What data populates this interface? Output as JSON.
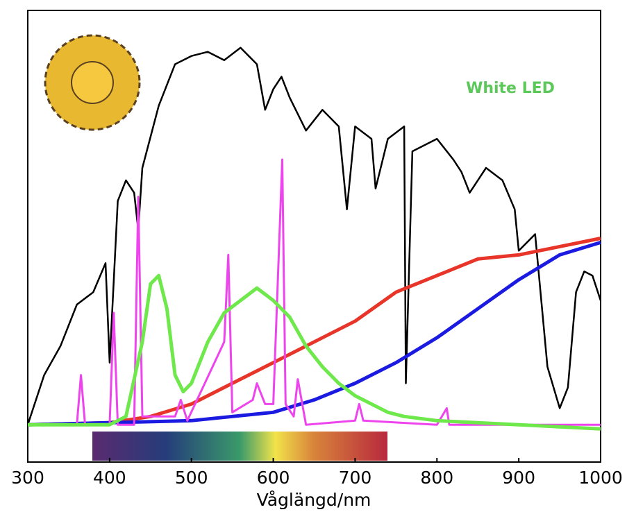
{
  "chart_data": {
    "type": "line",
    "xlabel": "Våglängd/nm",
    "annotation": "White LED",
    "annotation_color": "#5cc85a",
    "xlim": [
      300,
      1000
    ],
    "ylim": [
      -0.09,
      1
    ],
    "xticks": [
      300,
      400,
      500,
      600,
      700,
      800,
      900,
      1000
    ],
    "series": [
      {
        "color": "#000000",
        "width": 2.5,
        "x": [
          300,
          320,
          340,
          360,
          380,
          395,
          400,
          410,
          420,
          430,
          435,
          440,
          460,
          480,
          500,
          520,
          540,
          560,
          580,
          590,
          600,
          610,
          620,
          640,
          660,
          680,
          690,
          700,
          720,
          725,
          740,
          760,
          762,
          770,
          800,
          820,
          830,
          840,
          860,
          880,
          895,
          900,
          920,
          935,
          950,
          960,
          970,
          980,
          990,
          1000
        ],
        "values": [
          0,
          0.12,
          0.19,
          0.29,
          0.32,
          0.39,
          0.15,
          0.54,
          0.59,
          0.56,
          0.47,
          0.62,
          0.77,
          0.87,
          0.89,
          0.9,
          0.88,
          0.91,
          0.87,
          0.76,
          0.81,
          0.84,
          0.79,
          0.71,
          0.76,
          0.72,
          0.52,
          0.72,
          0.69,
          0.57,
          0.69,
          0.72,
          0.1,
          0.66,
          0.69,
          0.64,
          0.61,
          0.56,
          0.62,
          0.59,
          0.52,
          0.42,
          0.46,
          0.14,
          0.04,
          0.09,
          0.32,
          0.37,
          0.36,
          0.3
        ]
      },
      {
        "color": "#e8352a",
        "width": 5,
        "x": [
          300,
          400,
          450,
          500,
          550,
          600,
          650,
          700,
          750,
          800,
          850,
          900,
          950,
          1000
        ],
        "values": [
          0,
          0.005,
          0.02,
          0.05,
          0.1,
          0.15,
          0.2,
          0.25,
          0.32,
          0.36,
          0.4,
          0.41,
          0.43,
          0.45
        ]
      },
      {
        "color": "#1a1ae0",
        "width": 5,
        "x": [
          300,
          500,
          600,
          650,
          700,
          750,
          800,
          850,
          900,
          950,
          1000
        ],
        "values": [
          0,
          0.01,
          0.03,
          0.06,
          0.1,
          0.15,
          0.21,
          0.28,
          0.35,
          0.41,
          0.44
        ]
      },
      {
        "color": "#ee44ee",
        "width": 3,
        "x": [
          300,
          360,
          365,
          370,
          400,
          405,
          410,
          430,
          435,
          440,
          480,
          487,
          495,
          540,
          545,
          550,
          575,
          580,
          590,
          600,
          611,
          615,
          625,
          630,
          640,
          700,
          705,
          710,
          800,
          812,
          815,
          1000
        ],
        "values": [
          0,
          0,
          0.12,
          0,
          0,
          0.27,
          0,
          0,
          0.55,
          0.02,
          0.02,
          0.06,
          0.01,
          0.2,
          0.41,
          0.03,
          0.06,
          0.1,
          0.05,
          0.05,
          0.64,
          0.05,
          0.02,
          0.11,
          0,
          0.01,
          0.05,
          0.01,
          0,
          0.04,
          0,
          0
        ]
      },
      {
        "color": "#6ee84a",
        "width": 5,
        "x": [
          300,
          400,
          420,
          440,
          450,
          460,
          470,
          480,
          490,
          500,
          520,
          540,
          560,
          580,
          600,
          620,
          640,
          660,
          680,
          700,
          720,
          740,
          760,
          800,
          900,
          1000
        ],
        "values": [
          0,
          0,
          0.02,
          0.2,
          0.34,
          0.36,
          0.28,
          0.12,
          0.08,
          0.1,
          0.2,
          0.27,
          0.3,
          0.33,
          0.3,
          0.26,
          0.19,
          0.14,
          0.1,
          0.07,
          0.05,
          0.03,
          0.02,
          0.01,
          0,
          -0.01
        ]
      }
    ]
  }
}
